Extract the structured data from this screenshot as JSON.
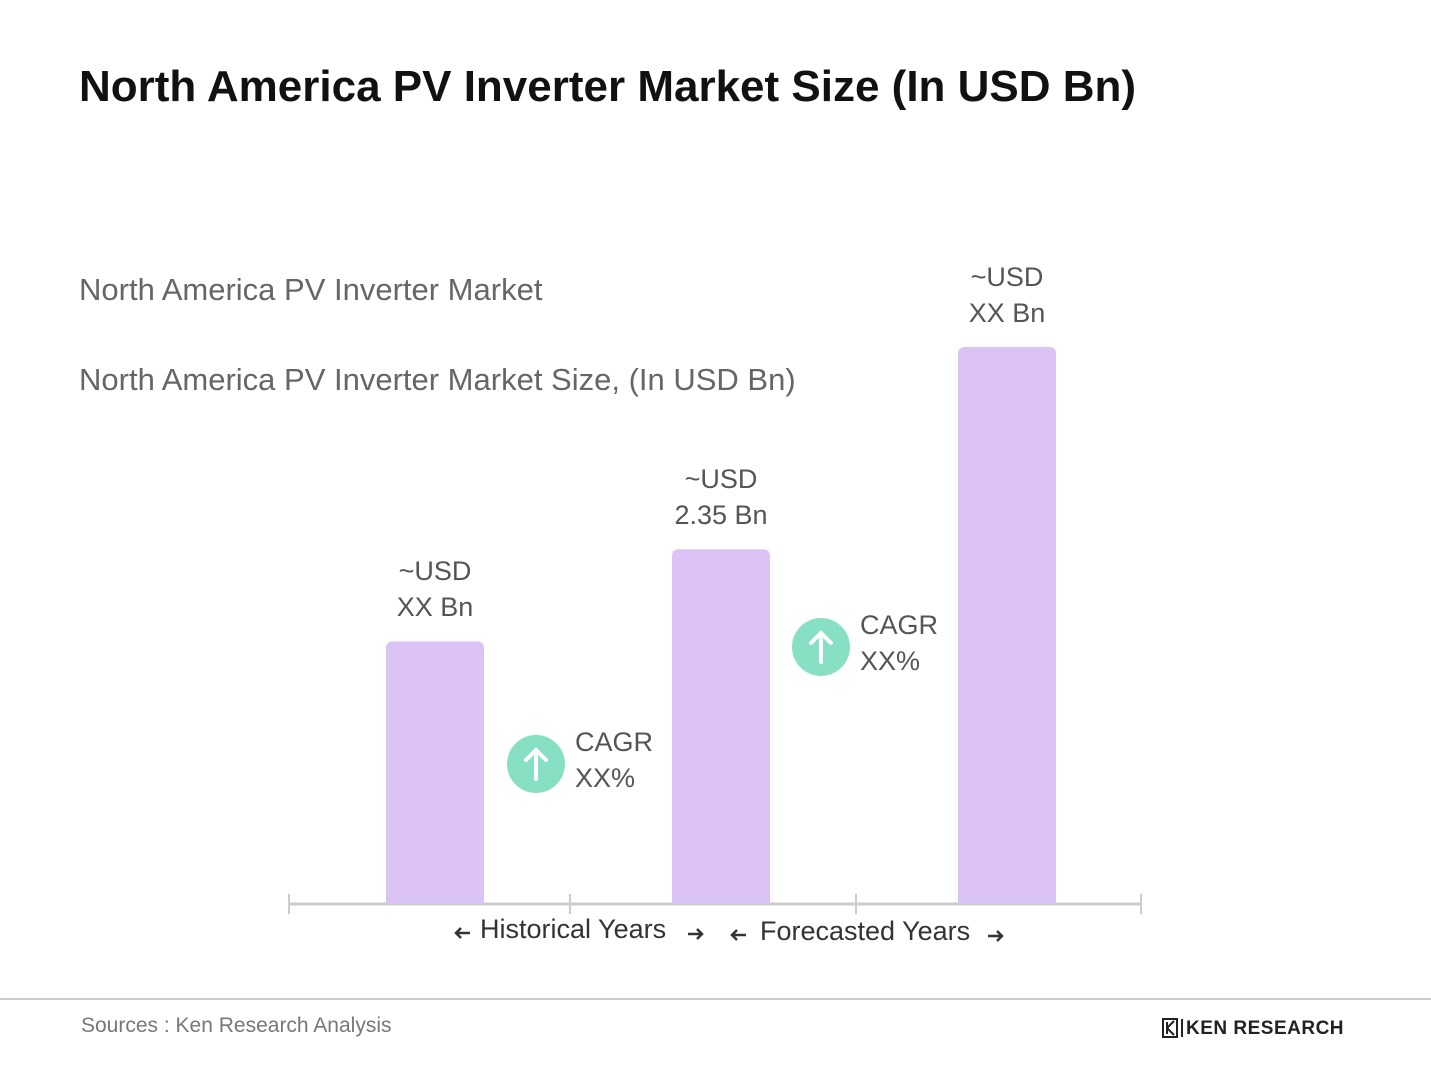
{
  "chart_data": {
    "type": "bar",
    "title": "North America PV Inverter Market Size (In USD Bn)",
    "subtitle": [
      "North America PV Inverter Market",
      "North America PV Inverter Market Size, (In USD Bn)"
    ],
    "categories": [
      null,
      null,
      null
    ],
    "values": [
      1.74,
      2.35,
      3.69
    ],
    "value_labels": [
      "~USD\nXX Bn",
      "~USD\n2.35 Bn",
      "~USD\nXX Bn"
    ],
    "color": "#dcc3f5",
    "annotations": [
      {
        "text": "CAGR\nXX%"
      },
      {
        "text": "CAGR\nXX%"
      }
    ],
    "periods": [
      "Historical Years",
      "Forecasted Years"
    ],
    "source": "Sources : Ken Research Analysis",
    "logo": "KEN RESEARCH"
  }
}
